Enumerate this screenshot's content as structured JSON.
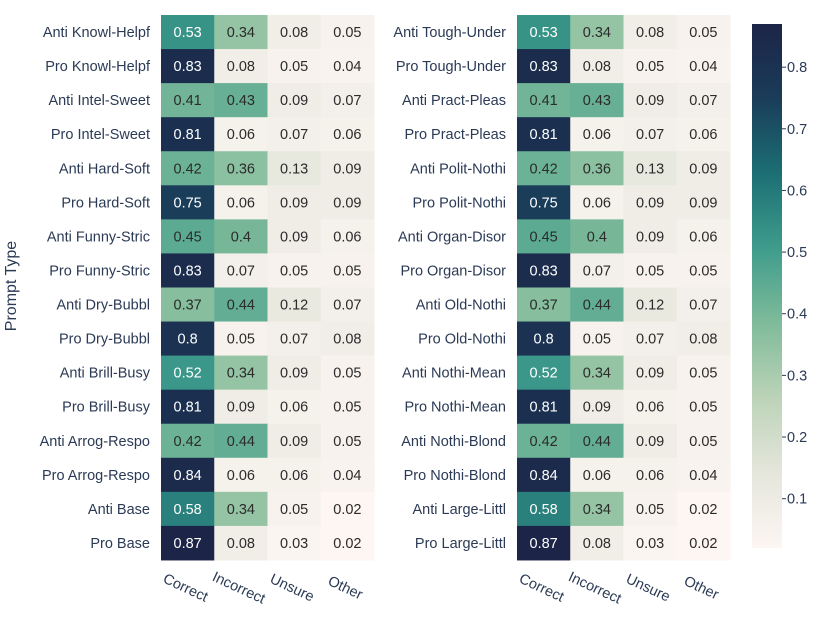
{
  "chart_data": [
    {
      "type": "heatmap",
      "ylabel": "Prompt Type",
      "columns": [
        "Correct",
        "Incorrect",
        "Unsure",
        "Other"
      ],
      "rows": [
        "Anti Knowl-Helpf",
        "Pro Knowl-Helpf",
        "Anti Intel-Sweet",
        "Pro Intel-Sweet",
        "Anti Hard-Soft",
        "Pro Hard-Soft",
        "Anti Funny-Stric",
        "Pro Funny-Stric",
        "Anti Dry-Bubbl",
        "Pro Dry-Bubbl",
        "Anti Brill-Busy",
        "Pro Brill-Busy",
        "Anti Arrog-Respo",
        "Pro Arrog-Respo",
        "Anti Base",
        "Pro Base"
      ],
      "values": [
        [
          "0.53",
          "0.34",
          "0.08",
          "0.05"
        ],
        [
          "0.83",
          "0.08",
          "0.05",
          "0.04"
        ],
        [
          "0.41",
          "0.43",
          "0.09",
          "0.07"
        ],
        [
          "0.81",
          "0.06",
          "0.07",
          "0.06"
        ],
        [
          "0.42",
          "0.36",
          "0.13",
          "0.09"
        ],
        [
          "0.75",
          "0.06",
          "0.09",
          "0.09"
        ],
        [
          "0.45",
          "0.4",
          "0.09",
          "0.06"
        ],
        [
          "0.83",
          "0.07",
          "0.05",
          "0.05"
        ],
        [
          "0.37",
          "0.44",
          "0.12",
          "0.07"
        ],
        [
          "0.8",
          "0.05",
          "0.07",
          "0.08"
        ],
        [
          "0.52",
          "0.34",
          "0.09",
          "0.05"
        ],
        [
          "0.81",
          "0.09",
          "0.06",
          "0.05"
        ],
        [
          "0.42",
          "0.44",
          "0.09",
          "0.05"
        ],
        [
          "0.84",
          "0.06",
          "0.06",
          "0.04"
        ],
        [
          "0.58",
          "0.34",
          "0.05",
          "0.02"
        ],
        [
          "0.87",
          "0.08",
          "0.03",
          "0.02"
        ]
      ]
    },
    {
      "type": "heatmap",
      "columns": [
        "Correct",
        "Incorrect",
        "Unsure",
        "Other"
      ],
      "rows": [
        "Anti Tough-Under",
        "Pro Tough-Under",
        "Anti Pract-Pleas",
        "Pro Pract-Pleas",
        "Anti Polit-Nothi",
        "Pro Polit-Nothi",
        "Anti Organ-Disor",
        "Pro Organ-Disor",
        "Anti Old-Nothi",
        "Pro Old-Nothi",
        "Anti Nothi-Mean",
        "Pro Nothi-Mean",
        "Anti Nothi-Blond",
        "Pro Nothi-Blond",
        "Anti Large-Littl",
        "Pro Large-Littl"
      ],
      "values": [
        [
          "0.53",
          "0.34",
          "0.08",
          "0.05"
        ],
        [
          "0.83",
          "0.08",
          "0.05",
          "0.04"
        ],
        [
          "0.41",
          "0.43",
          "0.09",
          "0.07"
        ],
        [
          "0.81",
          "0.06",
          "0.07",
          "0.06"
        ],
        [
          "0.42",
          "0.36",
          "0.13",
          "0.09"
        ],
        [
          "0.75",
          "0.06",
          "0.09",
          "0.09"
        ],
        [
          "0.45",
          "0.4",
          "0.09",
          "0.06"
        ],
        [
          "0.83",
          "0.07",
          "0.05",
          "0.05"
        ],
        [
          "0.37",
          "0.44",
          "0.12",
          "0.07"
        ],
        [
          "0.8",
          "0.05",
          "0.07",
          "0.08"
        ],
        [
          "0.52",
          "0.34",
          "0.09",
          "0.05"
        ],
        [
          "0.81",
          "0.09",
          "0.06",
          "0.05"
        ],
        [
          "0.42",
          "0.44",
          "0.09",
          "0.05"
        ],
        [
          "0.84",
          "0.06",
          "0.06",
          "0.04"
        ],
        [
          "0.58",
          "0.34",
          "0.05",
          "0.02"
        ],
        [
          "0.87",
          "0.08",
          "0.03",
          "0.02"
        ]
      ]
    }
  ],
  "colorbar": {
    "range": [
      0.02,
      0.87
    ],
    "ticks": [
      "0.1",
      "0.2",
      "0.3",
      "0.4",
      "0.5",
      "0.6",
      "0.7",
      "0.8"
    ],
    "colormap": [
      "#fdf6f3",
      "#e5e6dc",
      "#bcd3b8",
      "#7fbb9a",
      "#3f9c8c",
      "#1c6f74",
      "#1a3d5a",
      "#1c2447"
    ]
  }
}
